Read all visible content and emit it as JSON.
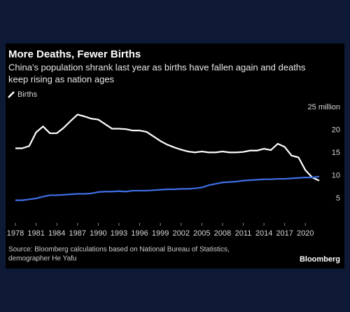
{
  "chart_data": {
    "type": "line",
    "title": "More Deaths, Fewer Births",
    "subtitle": [
      "China's population shrank last year as births have fallen again and deaths",
      "keep rising as nation ages"
    ],
    "source": [
      "Source: Bloomberg calculations based on National Bureau of Statistics,",
      "demographer He Yafu"
    ],
    "brand": "Bloomberg",
    "x": [
      1978,
      1979,
      1980,
      1981,
      1982,
      1983,
      1984,
      1985,
      1986,
      1987,
      1988,
      1989,
      1990,
      1991,
      1992,
      1993,
      1994,
      1995,
      1996,
      1997,
      1998,
      1999,
      2000,
      2001,
      2002,
      2003,
      2004,
      2005,
      2006,
      2007,
      2008,
      2009,
      2010,
      2011,
      2012,
      2013,
      2014,
      2015,
      2016,
      2017,
      2018,
      2019,
      2020,
      2021,
      2022
    ],
    "series": [
      {
        "name": "Births",
        "color": "#ffffff",
        "values": [
          16,
          16,
          16.5,
          19.5,
          20.8,
          19.3,
          19.3,
          20.5,
          22,
          23.4,
          23,
          22.5,
          22.3,
          21.3,
          20.3,
          20.3,
          20.2,
          19.9,
          19.9,
          19.6,
          18.6,
          17.6,
          16.8,
          16.2,
          15.7,
          15.3,
          15.1,
          15.3,
          15.1,
          15.1,
          15.3,
          15.1,
          15.1,
          15.2,
          15.5,
          15.5,
          15.9,
          15.6,
          17,
          16.3,
          14.4,
          14,
          11.2,
          9.6,
          8.9
        ]
      },
      {
        "color": "#3f6fe8",
        "values": [
          4.6,
          4.6,
          4.8,
          5.0,
          5.4,
          5.7,
          5.7,
          5.8,
          5.9,
          6.0,
          6.0,
          6.1,
          6.4,
          6.5,
          6.5,
          6.6,
          6.5,
          6.7,
          6.7,
          6.7,
          6.8,
          6.9,
          7.0,
          7.0,
          7.1,
          7.1,
          7.2,
          7.4,
          7.9,
          8.2,
          8.5,
          8.6,
          8.7,
          8.9,
          9.0,
          9.1,
          9.2,
          9.2,
          9.3,
          9.3,
          9.4,
          9.5,
          9.6,
          9.6,
          9.8
        ]
      }
    ],
    "xlim": [
      1978,
      2022
    ],
    "xticks": [
      1978,
      1981,
      1984,
      1987,
      1990,
      1993,
      1996,
      1999,
      2002,
      2005,
      2008,
      2011,
      2014,
      2017,
      2020
    ],
    "ylim": [
      0,
      25
    ],
    "yticks": [
      5,
      10,
      15,
      20,
      {
        "value": 25,
        "label": "25 million"
      }
    ],
    "y_axis_side": "right",
    "legend": "top-left"
  }
}
